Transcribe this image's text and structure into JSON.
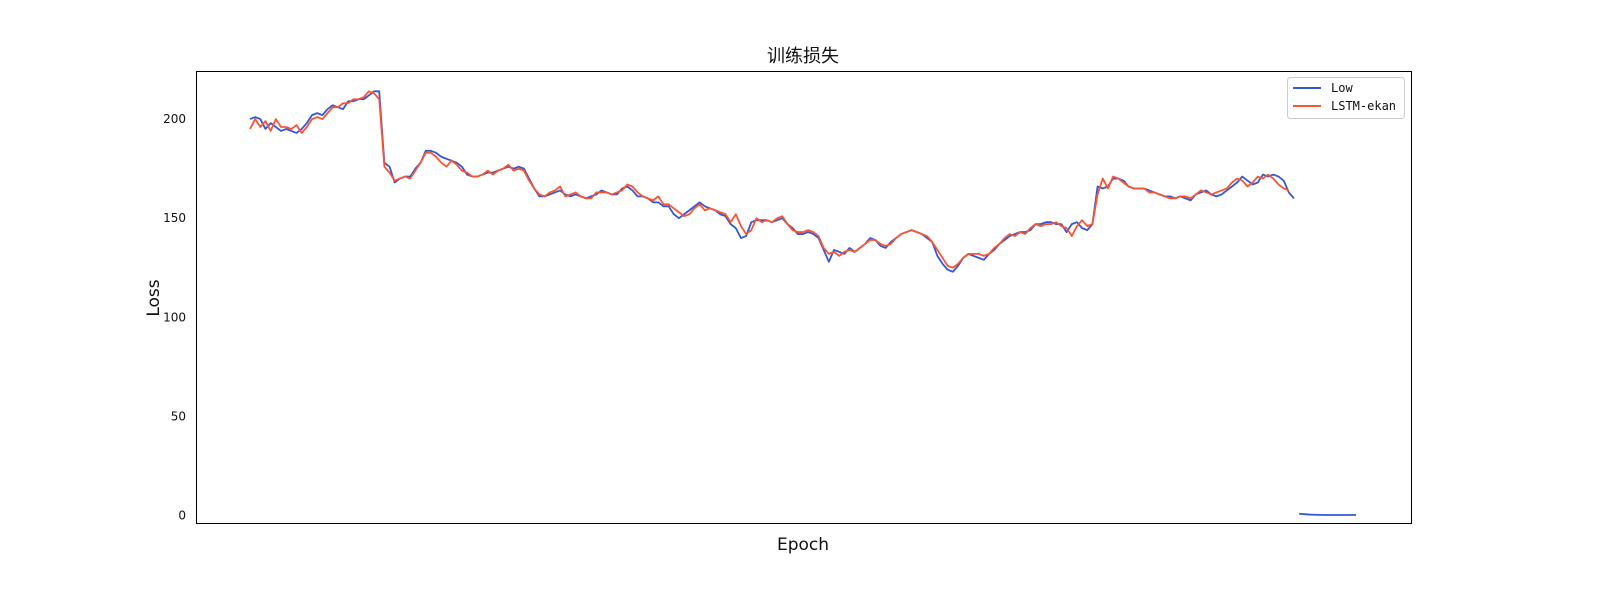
{
  "chart_data": {
    "type": "line",
    "title": "训练损失",
    "xlabel": "Epoch",
    "ylabel": "Loss",
    "ylim": [
      -4,
      224
    ],
    "yticks": [
      0,
      50,
      100,
      150,
      200
    ],
    "x_tick_labels_shown": false,
    "grid": false,
    "legend_position": "top-right",
    "series": [
      {
        "name": "Low",
        "color": "#3557d4",
        "values": [
          200,
          201,
          200,
          195,
          198,
          196,
          194,
          195,
          194,
          193,
          195,
          198,
          202,
          203,
          202,
          205,
          207,
          206,
          205,
          209,
          209,
          210,
          210,
          212,
          214,
          214,
          178,
          176,
          168,
          170,
          171,
          171,
          175,
          178,
          184,
          184,
          183,
          181,
          180,
          179,
          178,
          176,
          172,
          171,
          171,
          172,
          173,
          173,
          174,
          175,
          176,
          175,
          176,
          175,
          170,
          165,
          161,
          161,
          162,
          163,
          164,
          162,
          161,
          162,
          161,
          160,
          161,
          162,
          164,
          163,
          162,
          162,
          165,
          166,
          164,
          161,
          161,
          160,
          158,
          158,
          156,
          156,
          152,
          150,
          152,
          154,
          156,
          158,
          156,
          155,
          154,
          152,
          151,
          147,
          145,
          140,
          141,
          148,
          149,
          149,
          149,
          148,
          149,
          150,
          147,
          145,
          142,
          142,
          143,
          142,
          140,
          134,
          128,
          134,
          133,
          132,
          135,
          133,
          135,
          137,
          140,
          139,
          136,
          135,
          138,
          140,
          142,
          143,
          144,
          143,
          142,
          140,
          138,
          131,
          127,
          124,
          123,
          126,
          130,
          132,
          131,
          130,
          129,
          132,
          134,
          137,
          139,
          141,
          142,
          143,
          143,
          144,
          147,
          147,
          148,
          148,
          147,
          147,
          143,
          147,
          148,
          145,
          144,
          147,
          166,
          165,
          166,
          170,
          170,
          169,
          166,
          165,
          165,
          165,
          164,
          163,
          162,
          161,
          161,
          160,
          161,
          160,
          159,
          162,
          163,
          164,
          162,
          161,
          162,
          164,
          166,
          168,
          171,
          169,
          167,
          168,
          172,
          171,
          172,
          171,
          169,
          163,
          160
        ],
        "tail_values": [
          0.9,
          0.7,
          0.5,
          0.4,
          0.35,
          0.3,
          0.3,
          0.3,
          0.3,
          0.3,
          0.3,
          0.3
        ]
      },
      {
        "name": "LSTM-ekan",
        "color": "#fa5532",
        "values": [
          195,
          200,
          196,
          199,
          194,
          200,
          196,
          196,
          195,
          197,
          193,
          196,
          200,
          201,
          200,
          203,
          206,
          206,
          208,
          208,
          210,
          210,
          211,
          214,
          213,
          210,
          176,
          173,
          169,
          170,
          171,
          170,
          174,
          178,
          183,
          183,
          181,
          178,
          176,
          179,
          177,
          174,
          173,
          171,
          171,
          172,
          174,
          172,
          174,
          175,
          177,
          174,
          175,
          174,
          169,
          165,
          162,
          161,
          163,
          164,
          166,
          161,
          162,
          163,
          161,
          160,
          160,
          163,
          163,
          163,
          162,
          163,
          164,
          167,
          166,
          163,
          161,
          160,
          159,
          161,
          157,
          157,
          155,
          153,
          151,
          152,
          155,
          157,
          154,
          155,
          154,
          153,
          152,
          148,
          152,
          146,
          142,
          144,
          150,
          148,
          149,
          148,
          150,
          151,
          147,
          144,
          143,
          143,
          144,
          143,
          141,
          135,
          132,
          133,
          131,
          133,
          134,
          133,
          135,
          137,
          139,
          139,
          137,
          136,
          137,
          140,
          142,
          143,
          144,
          143,
          142,
          141,
          138,
          134,
          130,
          126,
          125,
          127,
          130,
          132,
          132,
          132,
          131,
          132,
          135,
          137,
          140,
          142,
          141,
          143,
          142,
          145,
          147,
          146,
          147,
          147,
          148,
          146,
          145,
          141,
          146,
          149,
          146,
          147,
          162,
          170,
          165,
          171,
          170,
          168,
          166,
          165,
          165,
          165,
          163,
          163,
          162,
          161,
          160,
          160,
          161,
          161,
          160,
          162,
          164,
          163,
          162,
          163,
          164,
          165,
          168,
          170,
          169,
          166,
          168,
          171,
          170,
          172,
          170,
          167,
          165,
          164
        ]
      }
    ]
  }
}
